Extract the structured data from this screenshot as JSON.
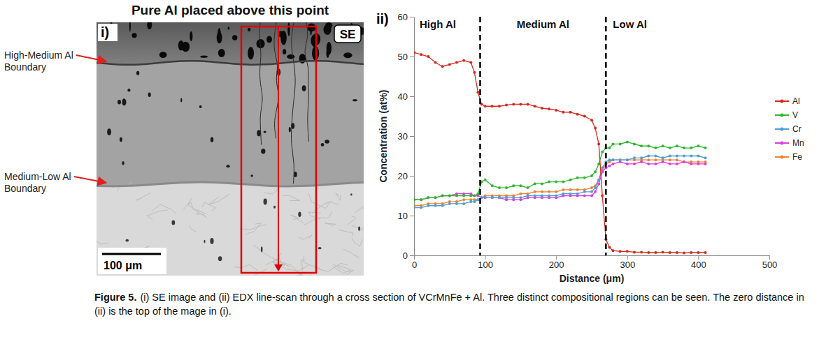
{
  "image_panel": {
    "panel_label": "i)",
    "mode": "SE",
    "title": "Pure Al placed above this point",
    "annotations": [
      "High-Medium Al Boundary",
      "Medium-Low Al Boundary"
    ],
    "scale_bar": "100 μm"
  },
  "chart_data": {
    "type": "line",
    "panel_label": "ii)",
    "x_label": "Distance (μm)",
    "y_label": "Concentration (at%)",
    "xlim": [
      0,
      500
    ],
    "xticks": [
      0,
      100,
      200,
      300,
      400,
      500
    ],
    "ylim": [
      0,
      60
    ],
    "yticks": [
      0,
      10,
      20,
      30,
      40,
      50,
      60
    ],
    "grid": false,
    "legend": "right",
    "marker": "circle",
    "region_labels": [
      "High Al",
      "Medium Al",
      "Low Al"
    ],
    "boundaries": [
      93,
      270
    ],
    "x": [
      0,
      10,
      20,
      30,
      40,
      50,
      60,
      70,
      80,
      85,
      90,
      95,
      100,
      110,
      120,
      130,
      140,
      150,
      160,
      170,
      180,
      190,
      200,
      210,
      220,
      230,
      240,
      250,
      255,
      260,
      265,
      270,
      275,
      280,
      290,
      300,
      310,
      320,
      330,
      340,
      350,
      360,
      370,
      380,
      390,
      400,
      410
    ],
    "series": [
      {
        "name": "Al",
        "color": "#d42a20",
        "values": [
          51,
          50.5,
          50,
          48.5,
          47.5,
          48,
          48.5,
          49,
          48.5,
          46,
          41,
          38,
          37.5,
          37.5,
          37.5,
          37.8,
          38,
          38,
          38,
          37.5,
          37,
          36.8,
          36.5,
          36,
          36,
          35.5,
          35,
          34,
          32,
          28,
          15,
          4,
          2,
          1.2,
          1,
          1,
          0.8,
          0.8,
          0.7,
          0.7,
          0.8,
          0.7,
          0.7,
          0.6,
          0.7,
          0.7,
          0.7
        ]
      },
      {
        "name": "V",
        "color": "#2eb82e",
        "values": [
          14,
          14,
          14.5,
          14.5,
          15,
          15,
          15,
          15,
          15,
          15,
          15.5,
          18.5,
          19,
          17.5,
          17,
          17,
          17.5,
          17.5,
          17,
          18,
          18,
          18.5,
          18.5,
          18.5,
          19,
          19.5,
          19.5,
          20,
          21,
          23,
          26,
          27,
          27,
          28,
          28,
          28.5,
          28,
          27.5,
          27.5,
          27,
          27.5,
          27,
          27.5,
          27,
          27,
          27.5,
          27
        ]
      },
      {
        "name": "Cr",
        "color": "#4a9fd8",
        "values": [
          12,
          12,
          12.5,
          12.5,
          12.5,
          13,
          13,
          13,
          13.5,
          13.5,
          14,
          14.5,
          14.5,
          14.5,
          14.5,
          14.5,
          14.5,
          14.5,
          15,
          15,
          15,
          15,
          15,
          15.5,
          15.5,
          15.5,
          16,
          16,
          17,
          19,
          22,
          23.5,
          24,
          24,
          24,
          24,
          24.5,
          24.5,
          25,
          25,
          24.5,
          25,
          25,
          25,
          25,
          25,
          24.5
        ]
      },
      {
        "name": "Mn",
        "color": "#e03ce0",
        "values": [
          14,
          14,
          14.5,
          14.5,
          15,
          15,
          15.5,
          15.5,
          15.5,
          15,
          15,
          14.5,
          14.5,
          14.5,
          14.5,
          14,
          14,
          14,
          14.5,
          14.5,
          14.5,
          14.5,
          14.5,
          15,
          15,
          15,
          15,
          15,
          16,
          18,
          21,
          22,
          22.5,
          23,
          23.5,
          23,
          23,
          23.5,
          23,
          23,
          23.5,
          23,
          23,
          23.5,
          23,
          23,
          23
        ]
      },
      {
        "name": "Fe",
        "color": "#f08030",
        "values": [
          12.5,
          12.5,
          13,
          13,
          13,
          13.5,
          13.5,
          14,
          14,
          14,
          14,
          14.5,
          15,
          15,
          15,
          15,
          15,
          15.5,
          15.5,
          16,
          16,
          16,
          16,
          16.5,
          16.5,
          16.5,
          16.5,
          17,
          17.5,
          19,
          21.5,
          23,
          23.5,
          24,
          24,
          24,
          24,
          24,
          24,
          24,
          24,
          24,
          24,
          23.5,
          23.5,
          23.5,
          23.5
        ]
      }
    ]
  },
  "caption": {
    "label": "Figure 5.",
    "text": "(i) SE image and (ii) EDX line-scan through a cross section of VCrMnFe + Al. Three distinct compositional regions can be seen. The zero distance in (ii) is the top of the mage in (i)."
  }
}
